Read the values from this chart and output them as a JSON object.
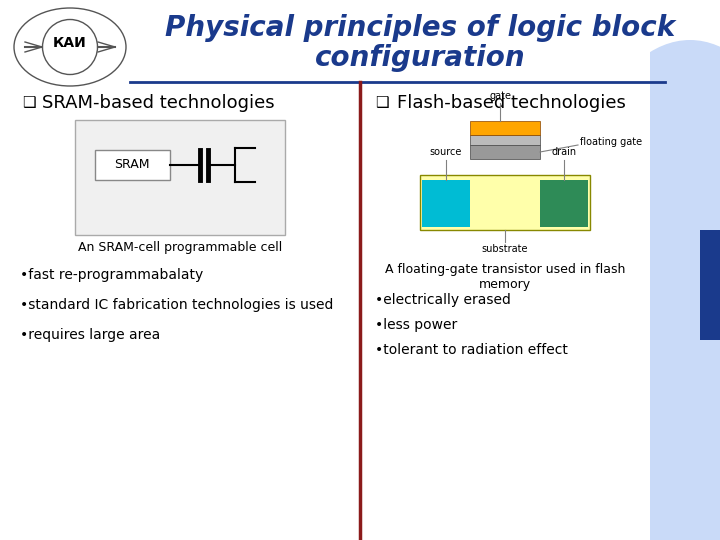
{
  "title_line1": "Physical principles of logic block",
  "title_line2": "configuration",
  "title_color": "#1a3a8c",
  "title_fontsize": 20,
  "bg_color": "#ffffff",
  "header_line_color": "#1a3a8c",
  "divider_color": "#8b1a1a",
  "left_heading": "SRAM-based technologies",
  "right_heading": "Flash-based technologies",
  "heading_fontsize": 13,
  "left_caption": "An SRAM-cell programmable cell",
  "right_caption": "A floating-gate transistor used in flash\nmemory",
  "caption_fontsize": 9,
  "left_bullets": [
    "fast re-programmabalaty",
    "standard IC fabrication technologies is used",
    "requires large area"
  ],
  "right_bullets": [
    "electrically erased",
    "less power",
    "tolerant to radiation effect"
  ],
  "bullet_fontsize": 10,
  "sram_box_fill": "#f0f0f0",
  "sram_box_edge": "#aaaaaa",
  "transistor_substrate_color": "#ffffaa",
  "transistor_source_color": "#00bcd4",
  "transistor_drain_color": "#2e8b57",
  "transistor_gate_color": "#ffa500",
  "transistor_float_gate_color": "#999999",
  "transistor_oxide_color": "#bbbbbb",
  "dark_blue_color": "#1a3a8c",
  "light_blue_color": "#c9daf8",
  "mid_blue_color": "#a8c4e8"
}
